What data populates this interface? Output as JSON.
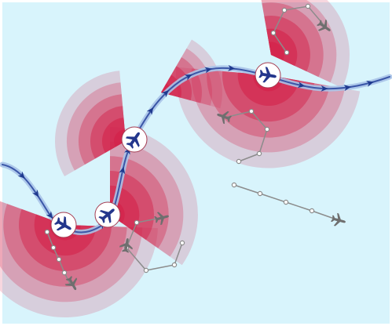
{
  "diagram": {
    "type": "airspace-conflict-illustration",
    "colors": {
      "sky": "#d8f4fc",
      "route": "#3b57a8",
      "route_glow": "#a9c3e8",
      "arrow": "#1f3a8f",
      "zone": "#d3244b",
      "badge_fill": "#ffffff",
      "plane_primary": "#23368c",
      "plane_other": "#6f6f6f",
      "track_other": "#8c8c8c"
    },
    "own_aircraft_count": 4,
    "other_aircraft_count": 5,
    "icons": {
      "own_aircraft": "airplane-icon",
      "other_aircraft": "airplane-icon",
      "route_marker": "chevron-arrow-icon",
      "track_waypoint": "waypoint-dot-icon"
    }
  }
}
